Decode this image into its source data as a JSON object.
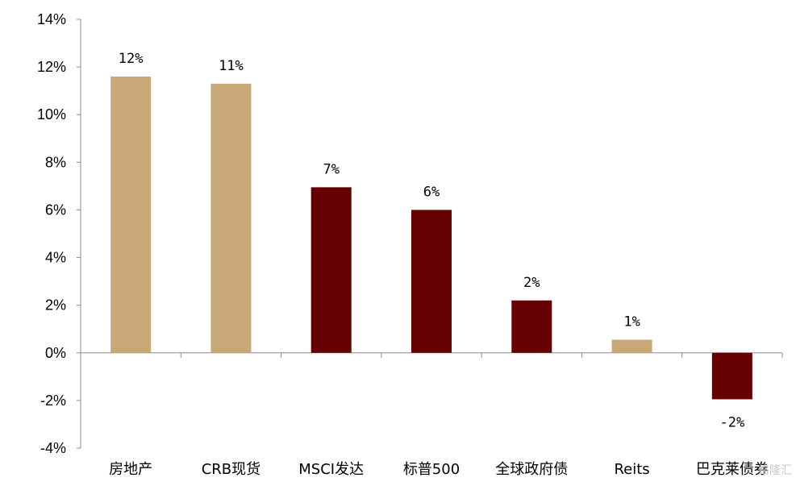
{
  "chart_data": {
    "type": "bar",
    "categories": [
      "房地产",
      "CRB现货",
      "MSCI发达",
      "标普500",
      "全球政府债",
      "Reits",
      "巴克莱债券"
    ],
    "values": [
      11.6,
      11.3,
      6.95,
      6.0,
      2.2,
      0.55,
      -1.95
    ],
    "data_labels": [
      "12%",
      "11%",
      "7%",
      "6%",
      "2%",
      "1%",
      "-2%"
    ],
    "bar_colors": [
      "#c9a878",
      "#c9a878",
      "#660000",
      "#660000",
      "#660000",
      "#c9a878",
      "#660000"
    ],
    "ylim": [
      -4,
      14
    ],
    "yticks": [
      -4,
      -2,
      0,
      2,
      4,
      6,
      8,
      10,
      12,
      14
    ],
    "ytick_labels": [
      "-4%",
      "-2%",
      "0%",
      "2%",
      "4%",
      "6%",
      "8%",
      "10%",
      "12%",
      "14%"
    ],
    "title": "",
    "xlabel": "",
    "ylabel": "",
    "grid": false,
    "legend": "none"
  },
  "watermark": {
    "text": "格隆汇"
  },
  "colors": {
    "axis": "#8c8c8c",
    "tan": "#c9a878",
    "maroon": "#660000"
  }
}
